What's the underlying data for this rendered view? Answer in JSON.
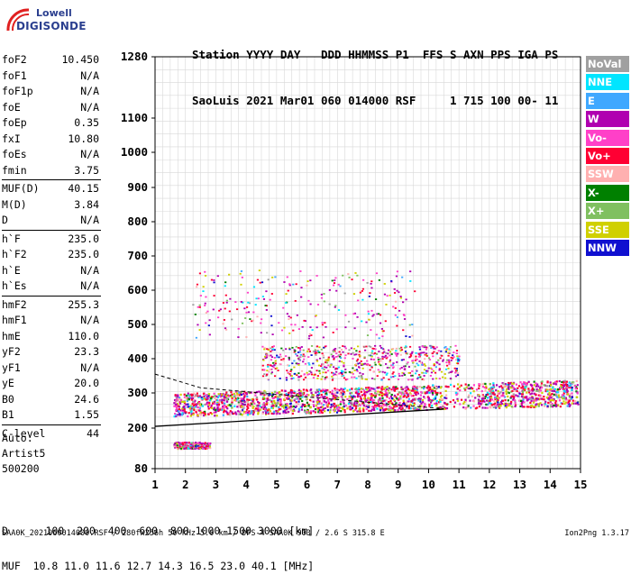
{
  "logo": {
    "line1": "Lowell",
    "line2": "DIGISONDE"
  },
  "header": {
    "row1": "Station YYYY DAY   DDD HHMMSS P1  FFS S AXN PPS IGA PS",
    "row2": "SaoLuis 2021 Mar01 060 014000 RSF     1 715 100 00- 11"
  },
  "params": {
    "group1": [
      {
        "k": "foF2",
        "v": "10.450"
      },
      {
        "k": "foF1",
        "v": "N/A"
      },
      {
        "k": "foF1p",
        "v": "N/A"
      },
      {
        "k": "foE",
        "v": "N/A"
      },
      {
        "k": "foEp",
        "v": "0.35"
      },
      {
        "k": "fxI",
        "v": "10.80"
      },
      {
        "k": "foEs",
        "v": "N/A"
      },
      {
        "k": "fmin",
        "v": "3.75"
      }
    ],
    "group2": [
      {
        "k": "MUF(D)",
        "v": "40.15"
      },
      {
        "k": "M(D)",
        "v": "3.84"
      },
      {
        "k": "D",
        "v": "N/A"
      }
    ],
    "group3": [
      {
        "k": "h`F",
        "v": "235.0"
      },
      {
        "k": "h`F2",
        "v": "235.0"
      },
      {
        "k": "h`E",
        "v": "N/A"
      },
      {
        "k": "h`Es",
        "v": "N/A"
      }
    ],
    "group4": [
      {
        "k": "hmF2",
        "v": "255.3"
      },
      {
        "k": "hmF1",
        "v": "N/A"
      },
      {
        "k": "hmE",
        "v": "110.0"
      },
      {
        "k": "yF2",
        "v": "23.3"
      },
      {
        "k": "yF1",
        "v": "N/A"
      },
      {
        "k": "yE",
        "v": "20.0"
      },
      {
        "k": "B0",
        "v": "24.6"
      },
      {
        "k": "B1",
        "v": "1.55"
      }
    ],
    "group5": [
      {
        "k": "C-level",
        "v": "44"
      }
    ]
  },
  "auto": {
    "line1": "Auto:",
    "line2": "Artist5",
    "line3": "500200"
  },
  "legend": [
    {
      "label": "NoVal",
      "color": "#a0a0a0"
    },
    {
      "label": "NNE",
      "color": "#00e5ff"
    },
    {
      "label": "E",
      "color": "#3fa8ff"
    },
    {
      "label": "W",
      "color": "#b000b0"
    },
    {
      "label": "Vo-",
      "color": "#ff40c8"
    },
    {
      "label": "Vo+",
      "color": "#ff0033"
    },
    {
      "label": "SSW",
      "color": "#ffb0b0"
    },
    {
      "label": "X-",
      "color": "#008000"
    },
    {
      "label": "X+",
      "color": "#80c060"
    },
    {
      "label": "SSE",
      "color": "#d0d000"
    },
    {
      "label": "NNW",
      "color": "#1010d0"
    }
  ],
  "bottom": {
    "dline": "D      100  200  400  600  800 1000 1500 3000 [km]",
    "mufline": "MUF  10.8 11.0 11.6 12.7 14.3 16.5 23.0 40.1 [MHz]"
  },
  "footer": {
    "left": "SAA0K_2021060014000.RSF / 280fx256h 50 kHz 5.0 km / DPS-4 SAA0K 903 / 2.6 S 315.8 E",
    "right": "Ion2Png 1.3.17"
  },
  "chart_data": {
    "type": "scatter",
    "subtype": "ionogram",
    "xlim": [
      1,
      15
    ],
    "ylim": [
      80,
      1280
    ],
    "x_ticks": [
      1,
      2,
      3,
      4,
      5,
      6,
      7,
      8,
      9,
      10,
      11,
      12,
      13,
      14,
      15
    ],
    "y_ticks": [
      80,
      200,
      300,
      400,
      500,
      600,
      700,
      800,
      900,
      1000,
      1100,
      1280
    ],
    "y_scale": "ionogram-compressed",
    "grid": true,
    "legend_position": "right",
    "traces": [
      {
        "name": "F-layer echoes",
        "freq_range": [
          1.6,
          14.9
        ],
        "height_range": [
          235,
          345
        ],
        "density": "dense"
      },
      {
        "name": "F-layer multihop",
        "freq_range": [
          2.2,
          9.6
        ],
        "height_range": [
          460,
          660
        ],
        "density": "sparse"
      },
      {
        "name": "F spread",
        "freq_range": [
          4.5,
          11.0
        ],
        "height_range": [
          340,
          440
        ],
        "density": "medium"
      },
      {
        "name": "low echoes",
        "freq_range": [
          1.6,
          2.8
        ],
        "height_range": [
          140,
          160
        ],
        "density": "sparse"
      }
    ],
    "profile_line": {
      "points": [
        [
          1.0,
          205
        ],
        [
          10.5,
          254
        ]
      ]
    },
    "profile_line2": {
      "points": [
        [
          1.0,
          355
        ],
        [
          2.5,
          315
        ],
        [
          10.5,
          255
        ]
      ]
    }
  }
}
